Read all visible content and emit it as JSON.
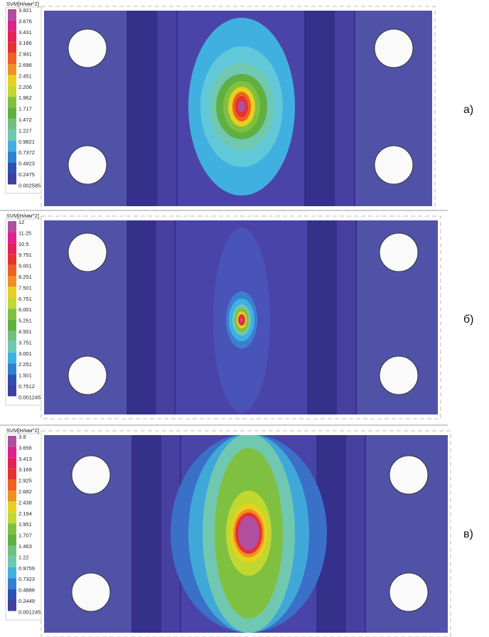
{
  "panels": [
    {
      "unit": "SVM[Н/мм^2]",
      "label": "а)",
      "legend_labels": [
        "3.921",
        "3.676",
        "3.431",
        "3.186",
        "2.941",
        "2.696",
        "2.451",
        "2.206",
        "1.962",
        "1.717",
        "1.472",
        "1.227",
        "0.9821",
        "0.7372",
        "0.4923",
        "0.2475",
        "0.002585"
      ]
    },
    {
      "unit": "SVM[Н/мм^2]",
      "label": "б)",
      "legend_labels": [
        "12",
        "11.25",
        "10.5",
        "9.751",
        "9.001",
        "8.251",
        "7.501",
        "6.751",
        "6.001",
        "5.251",
        "4.501",
        "3.751",
        "3.001",
        "2.251",
        "1.501",
        "0.7512",
        "0.001245"
      ]
    },
    {
      "unit": "SVM[Н/мм^2]",
      "label": "в)",
      "legend_labels": [
        "3.9",
        "3.656",
        "3.413",
        "3.169",
        "2.925",
        "2.682",
        "2.438",
        "2.194",
        "1.951",
        "1.707",
        "1.463",
        "1.22",
        "0.9759",
        "0.7323",
        "0.4886",
        "0.2449",
        "0.001245"
      ]
    }
  ]
}
